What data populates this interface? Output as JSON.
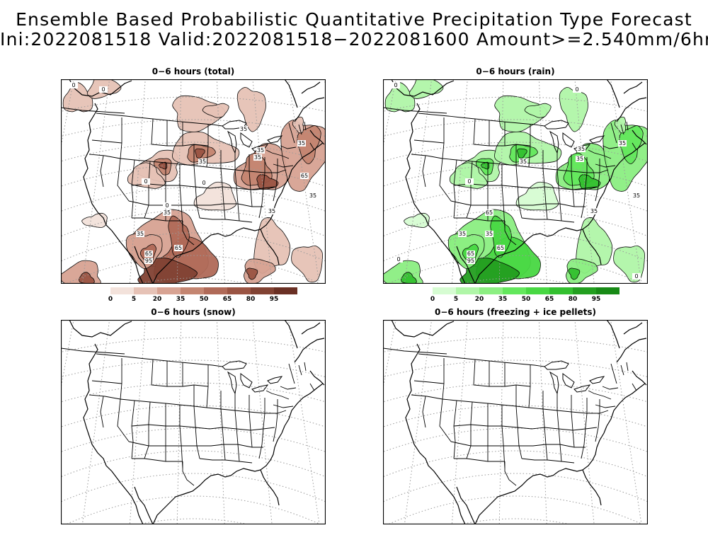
{
  "title": {
    "line1": "Ensemble Based Probabilistic Quantitative Precipitation Type Forecast",
    "line2": "Ini:2022081518 Valid:2022081518−2022081600 Amount>=2.540mm/6hrs"
  },
  "panels": [
    {
      "title": "0−6 hours (total)",
      "fill": "brown"
    },
    {
      "title": "0−6 hours (rain)",
      "fill": "green"
    },
    {
      "title": "0−6 hours (snow)",
      "fill": "none"
    },
    {
      "title": "0−6 hours (freezing + ice pellets)",
      "fill": "none"
    }
  ],
  "colorbars": {
    "brown": {
      "labels": [
        "0",
        "5",
        "20",
        "35",
        "50",
        "65",
        "80",
        "95"
      ],
      "colors": [
        "#f3e2db",
        "#e6c2b6",
        "#d8a393",
        "#c48571",
        "#b06a58",
        "#9a5443",
        "#814233",
        "#6a3024"
      ]
    },
    "green": {
      "labels": [
        "0",
        "5",
        "20",
        "35",
        "50",
        "65",
        "80",
        "95"
      ],
      "colors": [
        "#d6fcd2",
        "#b0f6a8",
        "#8cef82",
        "#63e85c",
        "#48d843",
        "#33c02f",
        "#239f20",
        "#188a16"
      ]
    }
  },
  "contour_labels": {
    "total": [
      "0",
      "0",
      "0",
      "35",
      "35",
      "35",
      "35",
      "35",
      "65",
      "35",
      "0",
      "35",
      "35",
      "65",
      "65",
      "95",
      "35",
      "0"
    ],
    "rain": [
      "0",
      "0",
      "0",
      "35",
      "35",
      "35",
      "35",
      "65",
      "35",
      "35",
      "35",
      "65",
      "65",
      "95",
      "0",
      "0",
      "35"
    ]
  }
}
